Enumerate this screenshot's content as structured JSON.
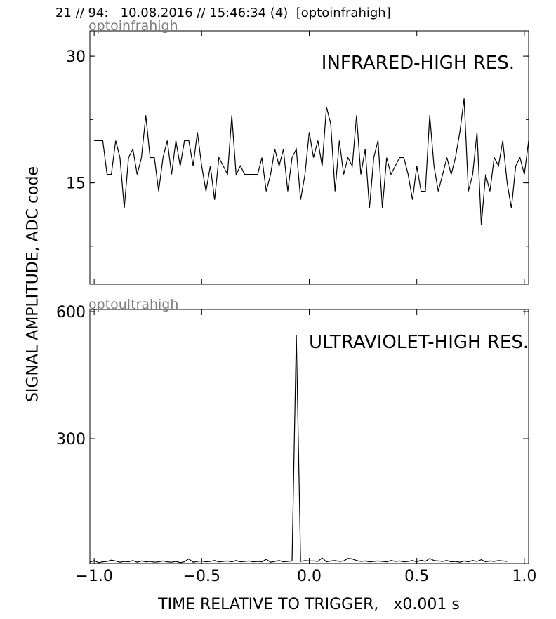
{
  "header": "21 // 94:   10.08.2016 // 15:46:34 (4)  [optoinfrahigh]",
  "ylabel": "SIGNAL AMPLITUDE,  ADC code",
  "xlabel": "TIME RELATIVE TO TRIGGER,   x0.001 s",
  "chart_data": [
    {
      "type": "line",
      "panel_tag": "optoinfrahigh",
      "title": "INFRARED-HIGH RES.",
      "xlim": [
        -1.02,
        1.02
      ],
      "ylim": [
        3,
        33
      ],
      "xticks": [
        -1.0,
        -0.5,
        0.0,
        0.5,
        1.0
      ],
      "yticks": [
        15,
        30
      ],
      "xticklabels_shown": false,
      "grid": false,
      "series": [
        {
          "x_start": -1.0,
          "x_step": 0.02,
          "values": [
            20,
            20,
            20,
            16,
            16,
            20,
            18,
            12,
            18,
            19,
            16,
            18,
            23,
            18,
            18,
            14,
            18,
            20,
            16,
            20,
            17,
            20,
            20,
            17,
            21,
            17,
            14,
            17,
            13,
            18,
            17,
            16,
            23,
            16,
            17,
            16,
            16,
            16,
            16,
            18,
            14,
            16,
            19,
            17,
            19,
            14,
            18,
            19,
            13,
            16,
            21,
            18,
            20,
            17,
            24,
            22,
            14,
            20,
            16,
            18,
            17,
            23,
            16,
            19,
            12,
            18,
            20,
            12,
            18,
            16,
            17,
            18,
            18,
            16,
            13,
            17,
            14,
            14,
            23,
            17,
            14,
            16,
            18,
            16,
            18,
            21,
            25,
            14,
            16,
            21,
            10,
            16,
            14,
            18,
            17,
            20,
            15,
            12,
            17,
            18,
            16,
            20
          ]
        }
      ]
    },
    {
      "type": "line",
      "panel_tag": "optoultrahigh",
      "title": "ULTRAVIOLET-HIGH RES.",
      "xlim": [
        -1.02,
        1.02
      ],
      "ylim": [
        5,
        605
      ],
      "xticks": [
        -1.0,
        -0.5,
        0.0,
        0.5,
        1.0
      ],
      "xticklabels": [
        "−1.0",
        "−0.5",
        "0.0",
        "0.5",
        "1.0"
      ],
      "yticks": [
        300,
        600
      ],
      "grid": false,
      "series": [
        {
          "x_start": -1.02,
          "x_step": 0.02,
          "values": [
            8,
            12,
            7,
            9,
            10,
            13,
            11,
            8,
            10,
            9,
            12,
            8,
            11,
            9,
            10,
            8,
            9,
            11,
            9,
            8,
            10,
            7,
            9,
            16,
            8,
            10,
            11,
            9,
            10,
            12,
            9,
            10,
            11,
            9,
            12,
            9,
            10,
            11,
            9,
            10,
            9,
            15,
            8,
            10,
            12,
            9,
            10,
            11,
            545,
            10,
            12,
            11,
            11,
            10,
            18,
            9,
            11,
            12,
            10,
            11,
            17,
            16,
            12,
            10,
            11,
            9,
            10,
            11,
            10,
            9,
            12,
            10,
            11,
            9,
            10,
            12,
            9,
            13,
            10,
            17,
            12,
            11,
            10,
            12,
            9,
            10,
            8,
            11,
            9,
            12,
            10,
            14,
            9,
            11,
            10,
            12,
            11,
            10
          ]
        }
      ]
    }
  ]
}
